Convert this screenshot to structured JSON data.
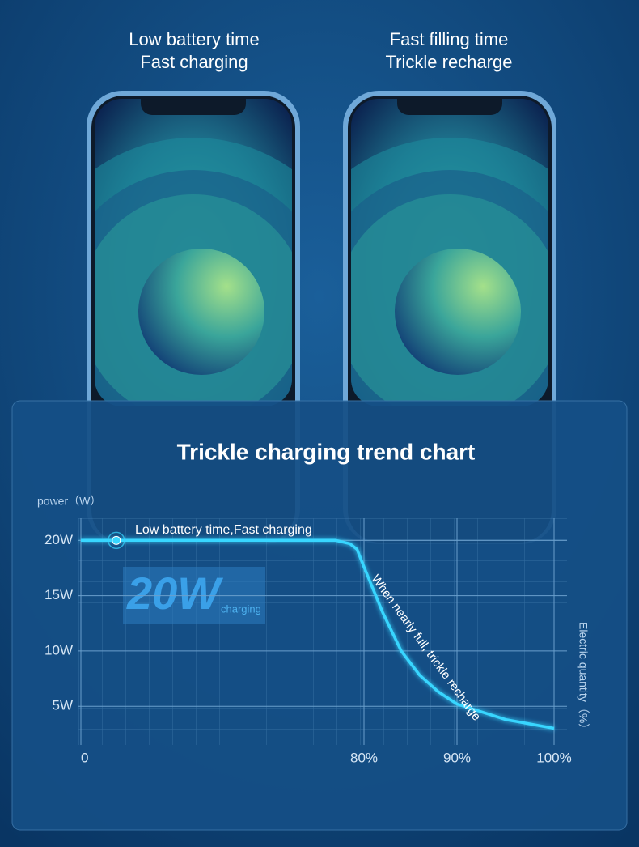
{
  "header": {
    "left": [
      "Low battery time",
      "Fast charging"
    ],
    "right": [
      "Fast filling time",
      "Trickle recharge"
    ]
  },
  "chart_data": {
    "type": "line",
    "title": "Trickle charging trend chart",
    "y_label": "power（W）",
    "x_label": "Electric quantity（%）",
    "x": [
      0,
      10,
      20,
      40,
      60,
      72,
      76,
      78,
      80,
      82,
      84,
      86,
      88,
      90,
      95,
      100
    ],
    "series": [
      {
        "name": "power",
        "color": "#38d6ff",
        "values": [
          20,
          20,
          20,
          20,
          20,
          20,
          19.7,
          19.2,
          17.6,
          13.5,
          10,
          7.8,
          6.3,
          5.2,
          3.8,
          3.0
        ]
      }
    ],
    "xlim": [
      0,
      100
    ],
    "ylim": [
      1.5,
      22
    ],
    "xticks": [
      0,
      {
        "value": 80,
        "label": "80%"
      },
      {
        "value": 90,
        "label": "90%"
      },
      {
        "value": 100,
        "label": "100%"
      }
    ],
    "yticks": [
      {
        "value": 5,
        "label": "5W"
      },
      {
        "value": 10,
        "label": "10W"
      },
      {
        "value": 15,
        "label": "15W"
      },
      {
        "value": 20,
        "label": "20W"
      }
    ],
    "grid": true,
    "annotations": [
      "Low battery time,Fast charging",
      "When nearly full, trickle recharge",
      "20W",
      "charging"
    ]
  }
}
